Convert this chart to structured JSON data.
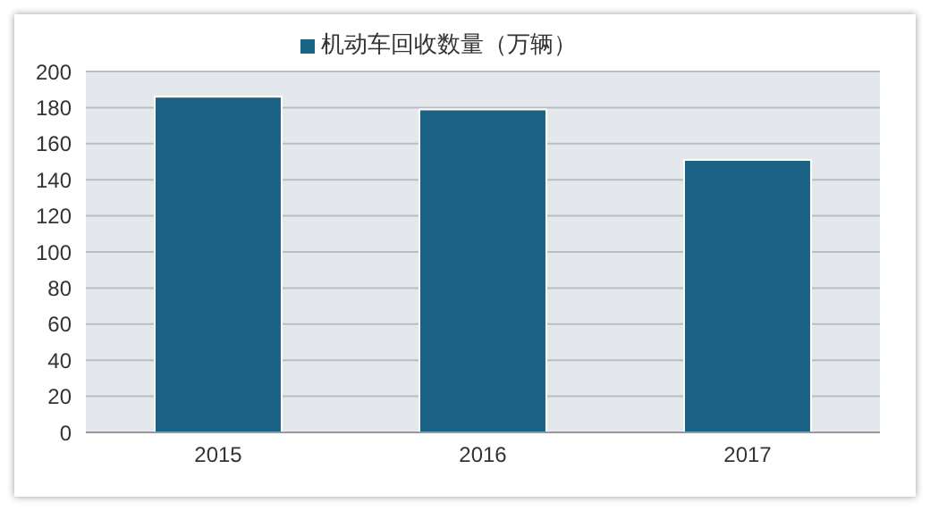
{
  "chart_data": {
    "type": "bar",
    "categories": [
      "2015",
      "2016",
      "2017"
    ],
    "series": [
      {
        "name": "机动车回收数量（万辆）",
        "color": "#1b6384",
        "values": [
          186,
          179,
          151
        ]
      }
    ],
    "ylim": [
      0,
      200
    ],
    "yticks": [
      0,
      20,
      40,
      60,
      80,
      100,
      120,
      140,
      160,
      180,
      200
    ],
    "grid": "y",
    "legend": "top"
  }
}
